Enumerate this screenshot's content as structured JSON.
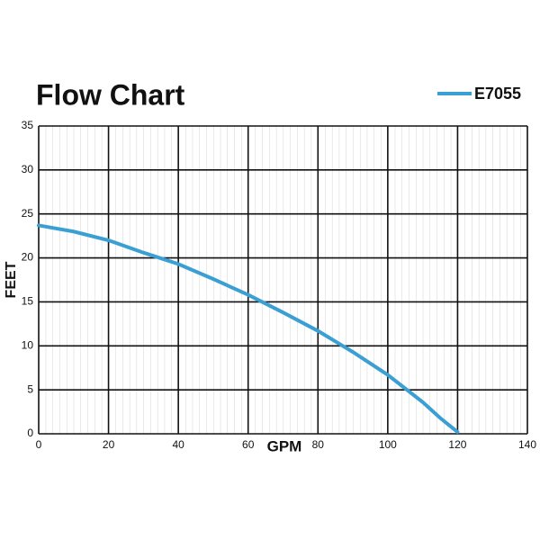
{
  "chart_data": {
    "type": "line",
    "title": "Flow Chart",
    "xlabel": "GPM",
    "ylabel": "FEET",
    "x": [
      0,
      10,
      20,
      30,
      40,
      50,
      60,
      70,
      80,
      90,
      100,
      110,
      115,
      120
    ],
    "series": [
      {
        "name": "E7055",
        "color": "#3a9fd3",
        "values": [
          23.7,
          23.0,
          22.0,
          20.6,
          19.3,
          17.6,
          15.8,
          13.8,
          11.7,
          9.3,
          6.7,
          3.6,
          1.8,
          0.2
        ]
      }
    ],
    "xlim": [
      0,
      140
    ],
    "xticks": [
      0,
      20,
      40,
      60,
      80,
      100,
      120,
      140
    ],
    "ylim": [
      0,
      35
    ],
    "yticks": [
      0,
      5,
      10,
      15,
      20,
      25,
      30,
      35
    ],
    "grid": true,
    "legend": "top-right"
  }
}
